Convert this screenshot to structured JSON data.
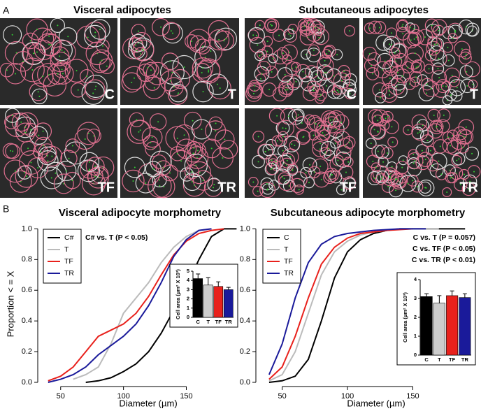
{
  "panel_a": {
    "label": "A",
    "titles": [
      "Visceral adipocytes",
      "Subcutaneous adipocytes"
    ],
    "images": [
      [
        "C",
        "T",
        "TF",
        "TR"
      ],
      [
        "C",
        "T",
        "TF",
        "TR"
      ]
    ]
  },
  "panel_b": {
    "label": "B"
  },
  "chart_data": [
    {
      "type": "line",
      "title": "Visceral adipocyte morphometry",
      "xlabel": "Diameter (µm)",
      "ylabel": "Proportion < = X",
      "x": [
        40,
        50,
        60,
        70,
        80,
        90,
        100,
        110,
        120,
        130,
        140,
        150,
        160,
        170,
        180,
        190
      ],
      "xlim": [
        34,
        192
      ],
      "ylim": [
        0,
        1.02
      ],
      "xticks": [
        50,
        100,
        150
      ],
      "yticks": [
        {
          "value": 0,
          "label": "0.0"
        },
        {
          "value": 0.2,
          "label": "0.2"
        },
        {
          "value": 0.4,
          "label": "0.4"
        },
        {
          "value": 0.6,
          "label": "0.6"
        },
        {
          "value": 0.8,
          "label": "0.8"
        },
        {
          "value": 1,
          "label": "1.0"
        }
      ],
      "legend": "upper left",
      "series": [
        {
          "name": "C#",
          "color": "#000000",
          "values": [
            null,
            null,
            null,
            0,
            0.01,
            0.03,
            0.07,
            0.12,
            0.2,
            0.32,
            0.47,
            0.62,
            0.8,
            0.95,
            1,
            1
          ]
        },
        {
          "name": "T",
          "color": "#bbbbbb",
          "values": [
            null,
            null,
            0.02,
            0.05,
            0.1,
            0.25,
            0.45,
            0.55,
            0.65,
            0.78,
            0.88,
            0.95,
            0.99,
            1,
            null,
            null
          ]
        },
        {
          "name": "TF",
          "color": "#e8211c",
          "values": [
            0.01,
            0.04,
            0.1,
            0.2,
            0.3,
            0.34,
            0.38,
            0.45,
            0.56,
            0.7,
            0.83,
            0.92,
            0.97,
            0.99,
            1,
            null
          ]
        },
        {
          "name": "TR",
          "color": "#1a1a9a",
          "values": [
            0,
            0.02,
            0.05,
            0.1,
            0.18,
            0.24,
            0.3,
            0.38,
            0.5,
            0.65,
            0.82,
            0.93,
            0.99,
            1,
            null,
            null
          ]
        }
      ],
      "annotations": [
        "C# vs. T (P < 0.05)"
      ],
      "inset": {
        "type": "bar",
        "ylabel": "Cell area (µm² X 10³)",
        "categories": [
          "C",
          "T",
          "TF",
          "TR"
        ],
        "values": [
          4.2,
          3.5,
          3.35,
          3.0
        ],
        "errors": [
          0.5,
          0.8,
          0.5,
          0.25
        ],
        "colors": [
          "#000000",
          "#cccccc",
          "#e8211c",
          "#1a1a9a"
        ],
        "ylim": [
          0,
          5
        ],
        "yticks": [
          0,
          1,
          2,
          3,
          4,
          5
        ]
      }
    },
    {
      "type": "line",
      "title": "Subcutaneous adipocyte morphometry",
      "xlabel": "Diameter (µm)",
      "x": [
        40,
        50,
        60,
        70,
        80,
        90,
        100,
        110,
        120,
        130,
        140,
        150,
        160,
        170,
        180,
        190
      ],
      "xlim": [
        32,
        199
      ],
      "ylim": [
        0,
        1.02
      ],
      "xticks": [
        50,
        100,
        150
      ],
      "yticks": [
        {
          "value": 0,
          "label": "0.0"
        },
        {
          "value": 0.2,
          "label": "0.2"
        },
        {
          "value": 0.4,
          "label": "0.4"
        },
        {
          "value": 0.6,
          "label": "0.6"
        },
        {
          "value": 0.8,
          "label": "0.8"
        },
        {
          "value": 1,
          "label": "1.0"
        }
      ],
      "legend": "upper left",
      "series": [
        {
          "name": "C",
          "color": "#000000",
          "values": [
            0,
            0.01,
            0.04,
            0.15,
            0.4,
            0.68,
            0.85,
            0.93,
            0.97,
            0.99,
            1,
            1,
            1,
            1,
            1,
            1
          ]
        },
        {
          "name": "T",
          "color": "#bbbbbb",
          "values": [
            0.01,
            0.05,
            0.2,
            0.45,
            0.7,
            0.85,
            0.92,
            0.96,
            0.98,
            0.99,
            1,
            1,
            1,
            1,
            null,
            null
          ]
        },
        {
          "name": "TF",
          "color": "#e8211c",
          "values": [
            0.02,
            0.1,
            0.3,
            0.55,
            0.77,
            0.88,
            0.94,
            0.97,
            0.98,
            0.99,
            0.995,
            1,
            null,
            null,
            null,
            null
          ]
        },
        {
          "name": "TR",
          "color": "#1a1a9a",
          "values": [
            0.05,
            0.25,
            0.55,
            0.78,
            0.9,
            0.95,
            0.97,
            0.98,
            0.99,
            0.995,
            1,
            1,
            1,
            null,
            null,
            null
          ]
        }
      ],
      "annotations": [
        "C vs. T (P = 0.057)",
        "C vs. TF (P < 0.05)",
        "C vs. TR (P < 0.01)"
      ],
      "inset": {
        "type": "bar",
        "ylabel": "Cell area (µm² X 10³)",
        "categories": [
          "C",
          "T",
          "TF",
          "TR"
        ],
        "values": [
          3.1,
          2.75,
          3.15,
          3.05
        ],
        "errors": [
          0.15,
          0.4,
          0.25,
          0.2
        ],
        "colors": [
          "#000000",
          "#cccccc",
          "#e8211c",
          "#1a1a9a"
        ],
        "ylim": [
          0,
          4
        ],
        "yticks": [
          0,
          1,
          2,
          3,
          4
        ]
      }
    }
  ]
}
